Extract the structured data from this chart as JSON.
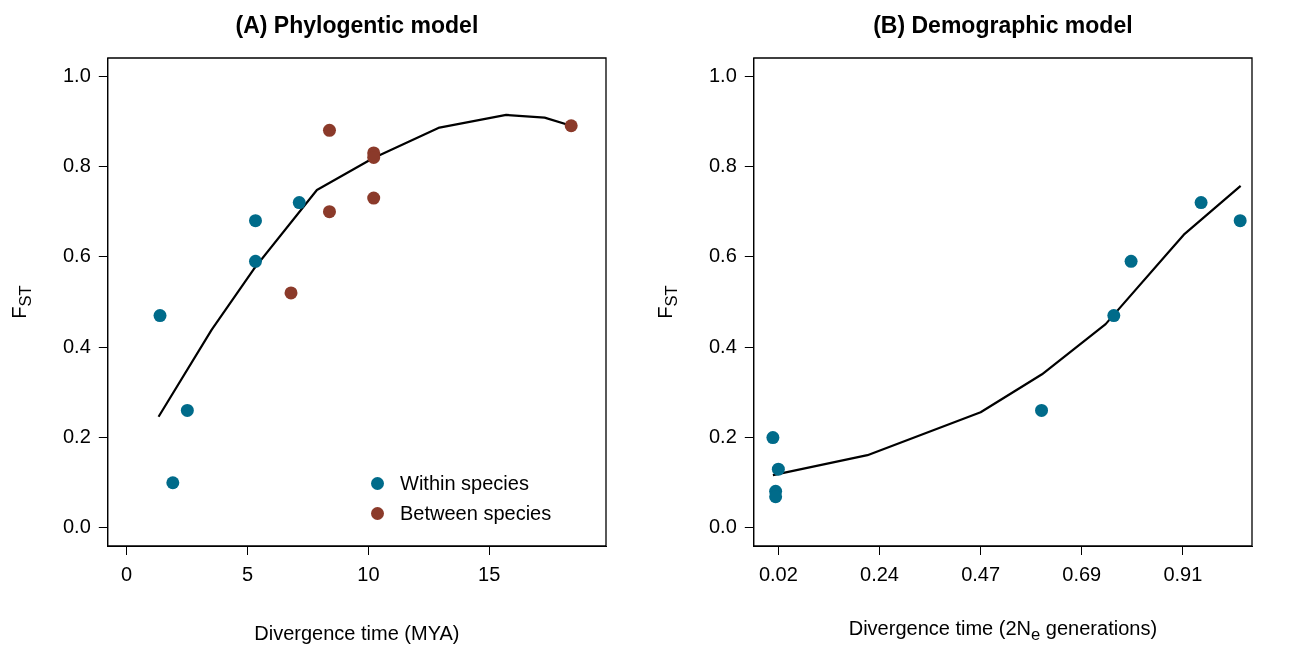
{
  "chart_data": [
    {
      "type": "scatter",
      "title": "(A) Phylogentic model",
      "xlabel": "Divergence time (MYA)",
      "ylabel": "F$_{ST}$",
      "xlim": [
        -0.78,
        19.83
      ],
      "ylim": [
        -0.04,
        1.04
      ],
      "xticks": [
        0,
        5,
        10,
        15
      ],
      "yticks": [
        {
          "value": 0,
          "label": "0.0"
        },
        {
          "value": 0.2,
          "label": "0.2"
        },
        {
          "value": 0.4,
          "label": "0.4"
        },
        {
          "value": 0.6,
          "label": "0.6"
        },
        {
          "value": 0.8,
          "label": "0.8"
        },
        {
          "value": 1,
          "label": "1.0"
        }
      ],
      "grid": false,
      "legend": "bottom right",
      "marker": "circle",
      "series": [
        {
          "name": "Within species",
          "color": "#006b8a",
          "x": [
            1.38,
            1.91,
            2.51,
            5.33,
            5.33,
            7.14
          ],
          "values": [
            0.47,
            0.1,
            0.26,
            0.68,
            0.59,
            0.72
          ]
        },
        {
          "name": "Between species",
          "color": "#8b3a2a",
          "x": [
            6.8,
            8.39,
            8.39,
            10.22,
            10.22,
            10.22,
            18.39
          ],
          "values": [
            0.52,
            0.88,
            0.7,
            0.83,
            0.82,
            0.73,
            0.89
          ]
        },
        {
          "type": "line",
          "color": "#000000",
          "marker": "none",
          "x": [
            1.32,
            3.52,
            5.26,
            7.87,
            10.19,
            12.94,
            15.7,
            17.29,
            18.39
          ],
          "values": [
            0.246,
            0.439,
            0.573,
            0.748,
            0.818,
            0.886,
            0.914,
            0.908,
            0.89
          ]
        }
      ]
    },
    {
      "type": "scatter",
      "title": "(B) Demographic model",
      "xlabel": "Divergence time (2N$_{e}$ generations)",
      "ylabel": "F$_{ST}$",
      "xlim": [
        -0.034,
        1.062
      ],
      "ylim": [
        -0.04,
        1.04
      ],
      "xticks": [
        {
          "value": 0.02,
          "label": "0.02"
        },
        {
          "value": 0.2425,
          "label": "0.24"
        },
        {
          "value": 0.465,
          "label": "0.47"
        },
        {
          "value": 0.6875,
          "label": "0.69"
        },
        {
          "value": 0.91,
          "label": "0.91"
        }
      ],
      "yticks": [
        {
          "value": 0,
          "label": "0.0"
        },
        {
          "value": 0.2,
          "label": "0.2"
        },
        {
          "value": 0.4,
          "label": "0.4"
        },
        {
          "value": 0.6,
          "label": "0.6"
        },
        {
          "value": 0.8,
          "label": "0.8"
        },
        {
          "value": 1,
          "label": "1.0"
        }
      ],
      "grid": false,
      "marker": "circle",
      "series": [
        {
          "color": "#006b8a",
          "x": [
            0.008,
            0.02,
            0.014,
            0.014,
            0.599,
            0.758,
            0.796,
            0.95,
            1.036
          ],
          "values": [
            0.2,
            0.13,
            0.081,
            0.069,
            0.26,
            0.47,
            0.59,
            0.72,
            0.68
          ]
        },
        {
          "type": "line",
          "color": "#000000",
          "marker": "none",
          "x": [
            0.008,
            0.216,
            0.465,
            0.6,
            0.74,
            0.912,
            1.037
          ],
          "values": [
            0.117,
            0.161,
            0.256,
            0.34,
            0.451,
            0.649,
            0.757
          ]
        }
      ]
    }
  ]
}
